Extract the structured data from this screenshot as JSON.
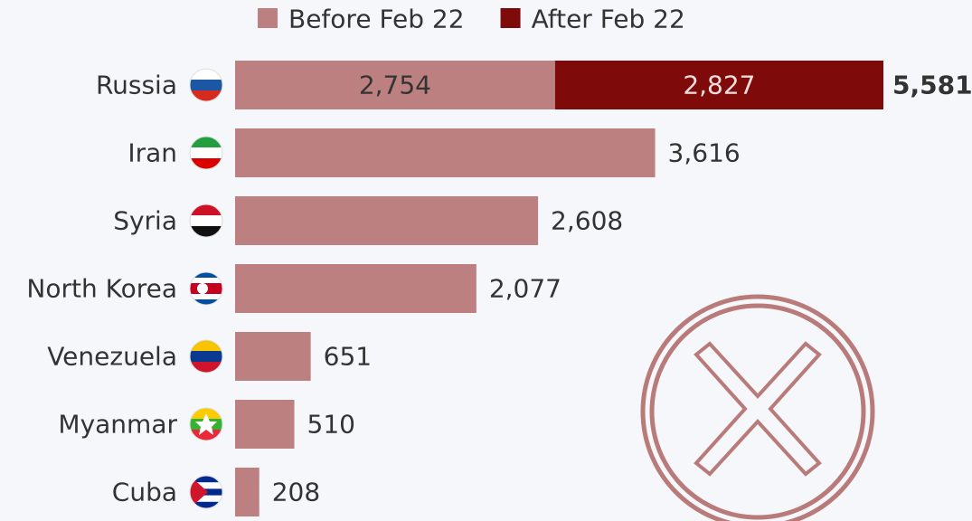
{
  "chart_data": {
    "type": "stacked-bar-horizontal",
    "categories": [
      "Russia",
      "Iran",
      "Syria",
      "North Korea",
      "Venezuela",
      "Myanmar",
      "Cuba"
    ],
    "series": [
      {
        "name": "Before Feb 22",
        "color": "#bd8080",
        "values": [
          2754,
          3616,
          2608,
          2077,
          651,
          510,
          208
        ],
        "value_labels": [
          "2,754",
          "3,616",
          "2,608",
          "2,077",
          "651",
          "510",
          "208"
        ]
      },
      {
        "name": "After Feb 22",
        "color": "#7f0a0a",
        "values": [
          2827,
          null,
          null,
          null,
          null,
          null,
          null
        ],
        "value_labels": [
          "2,827",
          null,
          null,
          null,
          null,
          null,
          null
        ]
      }
    ],
    "totals": [
      5581,
      null,
      null,
      null,
      null,
      null,
      null
    ],
    "total_labels": [
      "5,581",
      null,
      null,
      null,
      null,
      null,
      null
    ],
    "legend": "top"
  }
}
